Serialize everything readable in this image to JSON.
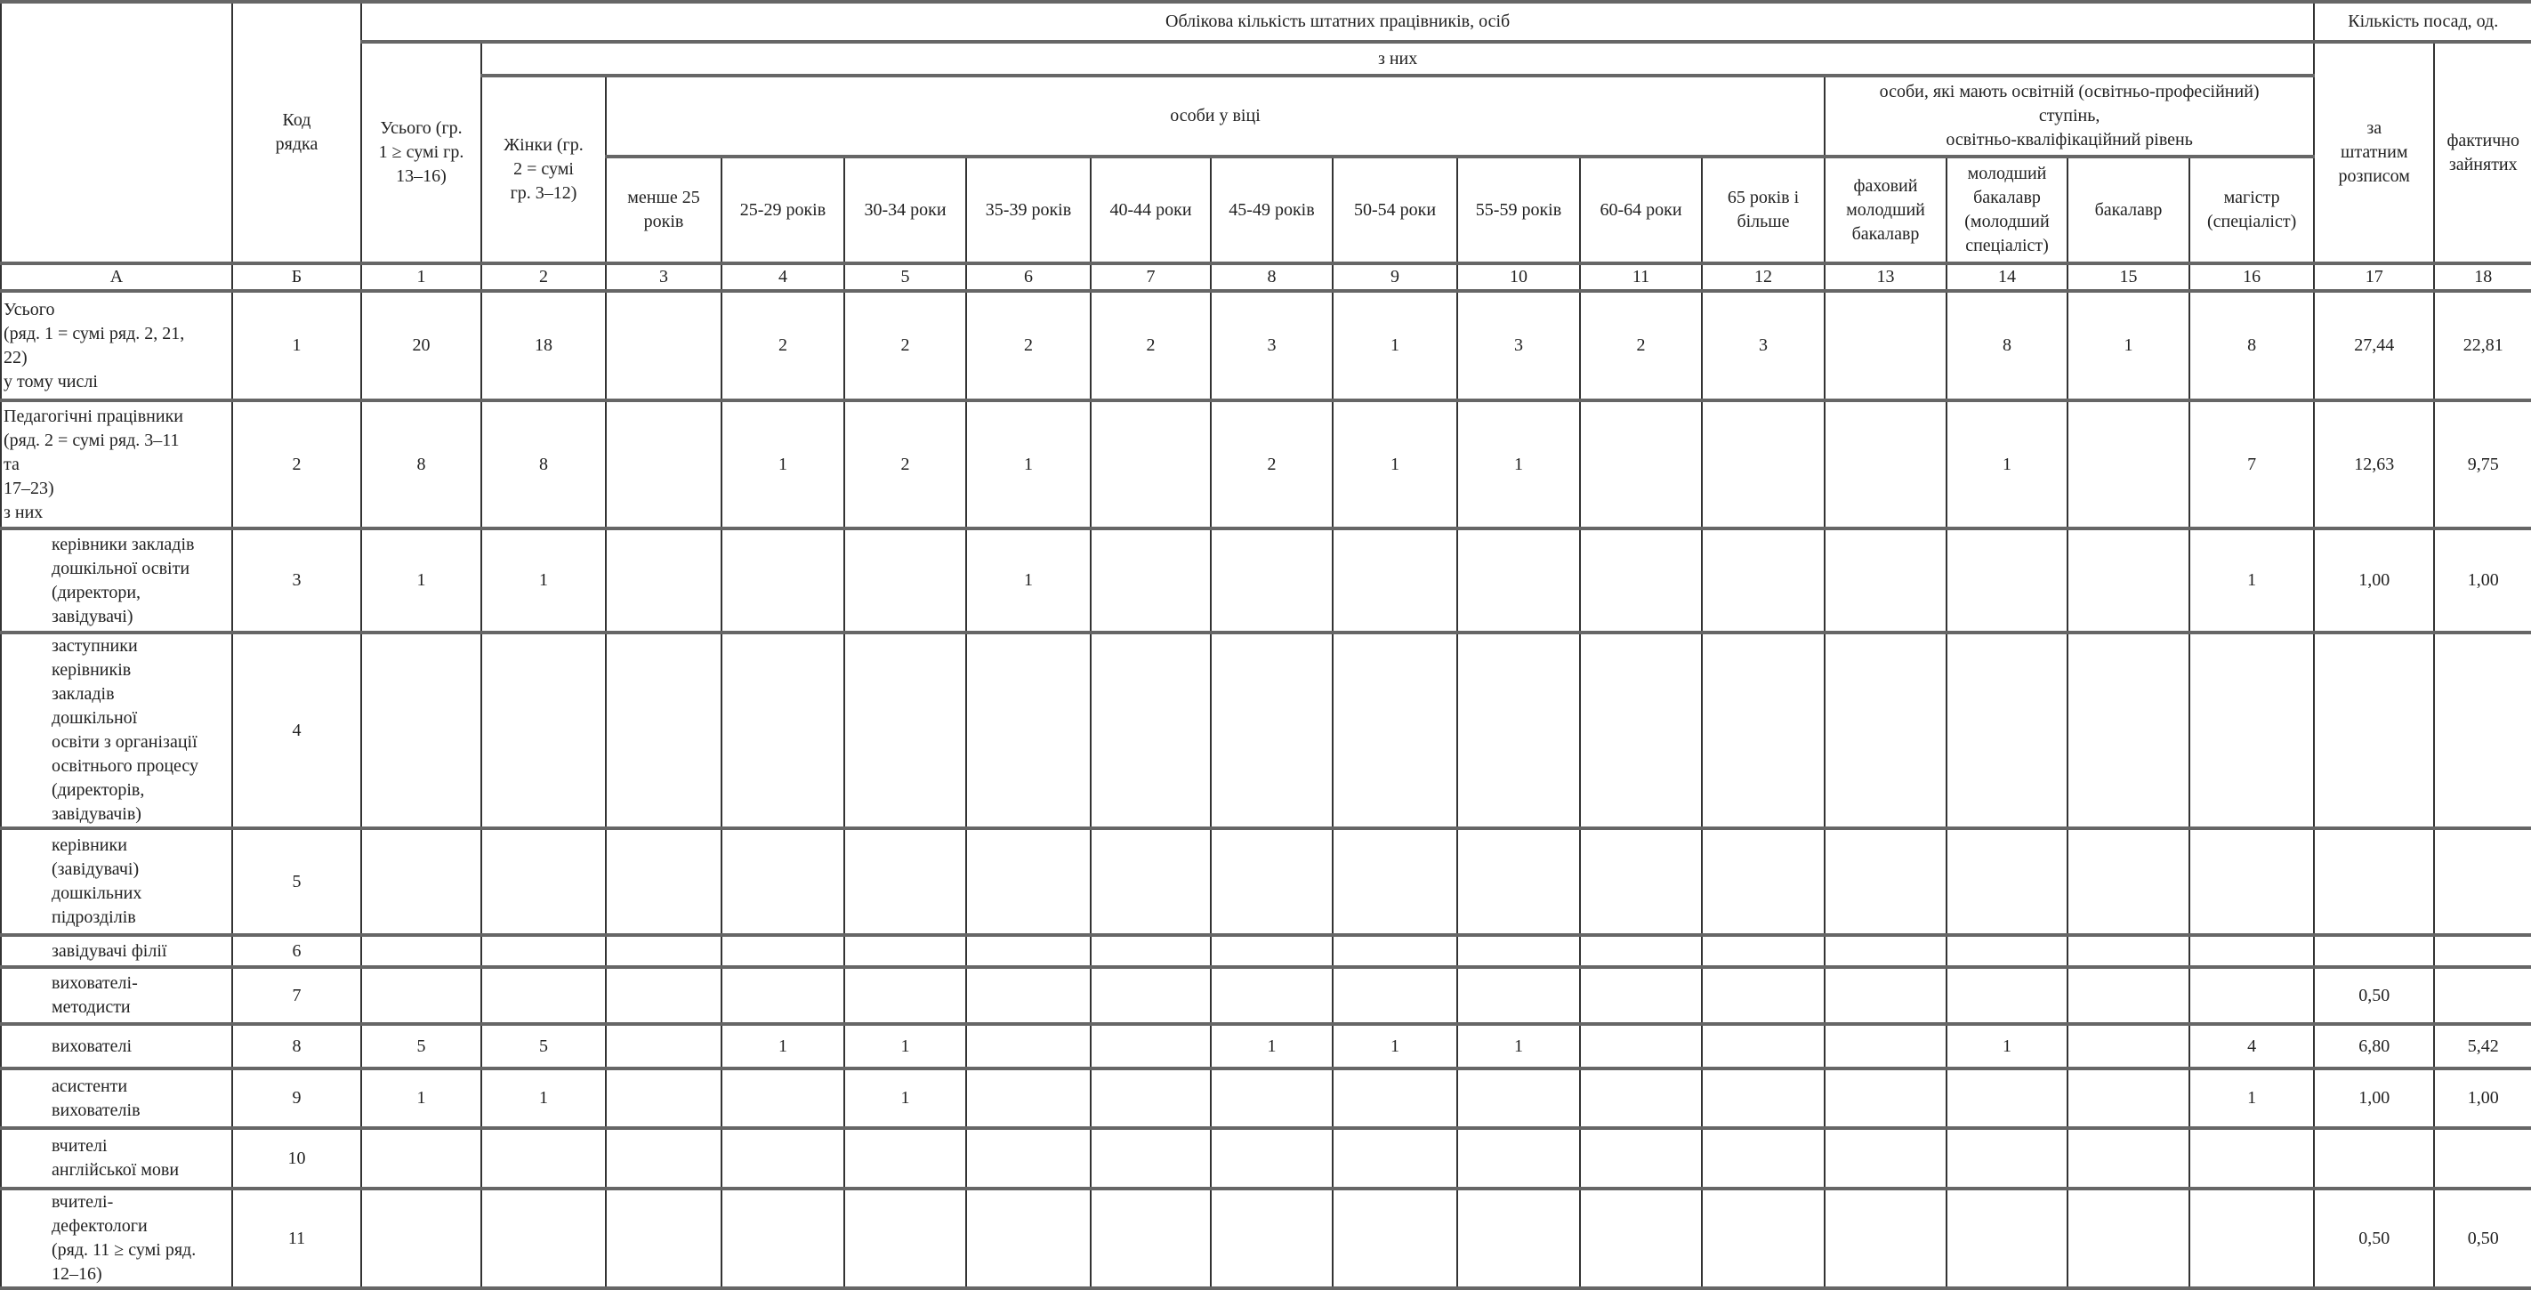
{
  "header": {
    "col_a": "",
    "code": "Код\nрядка",
    "staff_count": "Облікова кількість штатних працівників, осіб",
    "positions_count": "Кількість посад, од.",
    "total": "Усього (гр.\n1 ≥ сумі гр.\n13–16)",
    "of_them": "з них",
    "women": "Жінки (гр.\n2 = сумі\nгр. 3–12)",
    "by_age": "особи у віці",
    "by_education": "особи, які мають освітній (освітньо-професійний)\nступінь,\nосвітньо-кваліфікаційний рівень",
    "by_staff_schedule": "за\nштатним\nрозписом",
    "actually_occupied": "фактично\nзайнятих",
    "age_groups": [
      "менше 25\nроків",
      "25-29 років",
      "30-34 роки",
      "35-39 років",
      "40-44 роки",
      "45-49 років",
      "50-54 роки",
      "55-59 років",
      "60-64 роки",
      "65 років і\nбільше"
    ],
    "education_levels": [
      "фаховий\nмолодший\nбакалавр",
      "молодший\nбакалавр\n(молодший\nспеціаліст)",
      "бакалавр",
      "магістр\n(спеціаліст)"
    ],
    "column_numbers": [
      "А",
      "Б",
      "1",
      "2",
      "3",
      "4",
      "5",
      "6",
      "7",
      "8",
      "9",
      "10",
      "11",
      "12",
      "13",
      "14",
      "15",
      "16",
      "17",
      "18"
    ]
  },
  "rows": [
    {
      "label": "Усього\n(ряд. 1 = сумі ряд. 2, 21,\n22)\n   у тому числі",
      "code": "1",
      "values": [
        "20",
        "18",
        "",
        "2",
        "2",
        "2",
        "2",
        "3",
        "1",
        "3",
        "2",
        "3",
        "",
        "8",
        "1",
        "8",
        "27,44",
        "22,81"
      ]
    },
    {
      "label": "Педагогічні працівники\n(ряд. 2 = сумі ряд. 3–11\nта\n17–23)\n   з них",
      "code": "2",
      "values": [
        "8",
        "8",
        "",
        "1",
        "2",
        "1",
        "",
        "2",
        "1",
        "1",
        "",
        "",
        "",
        "1",
        "",
        "7",
        "12,63",
        "9,75"
      ]
    },
    {
      "label": "керівники закладів\nдошкільної освіти\n(директори,\nзавідувачі)",
      "code": "3",
      "values": [
        "1",
        "1",
        "",
        "",
        "",
        "1",
        "",
        "",
        "",
        "",
        "",
        "",
        "",
        "",
        "",
        "1",
        "1,00",
        "1,00"
      ]
    },
    {
      "label": "заступники\nкерівників\nзакладів\nдошкільної\nосвіти з організації\nосвітнього процесу\n(директорів,\nзавідувачів)",
      "code": "4",
      "values": [
        "",
        "",
        "",
        "",
        "",
        "",
        "",
        "",
        "",
        "",
        "",
        "",
        "",
        "",
        "",
        "",
        "",
        ""
      ]
    },
    {
      "label": "керівники\n(завідувачі)\nдошкільних\nпідрозділів",
      "code": "5",
      "values": [
        "",
        "",
        "",
        "",
        "",
        "",
        "",
        "",
        "",
        "",
        "",
        "",
        "",
        "",
        "",
        "",
        "",
        ""
      ]
    },
    {
      "label": "завідувачі філії",
      "code": "6",
      "values": [
        "",
        "",
        "",
        "",
        "",
        "",
        "",
        "",
        "",
        "",
        "",
        "",
        "",
        "",
        "",
        "",
        "",
        ""
      ]
    },
    {
      "label": "вихователі-\nметодисти",
      "code": "7",
      "values": [
        "",
        "",
        "",
        "",
        "",
        "",
        "",
        "",
        "",
        "",
        "",
        "",
        "",
        "",
        "",
        "",
        "0,50",
        ""
      ]
    },
    {
      "label": "вихователі",
      "code": "8",
      "values": [
        "5",
        "5",
        "",
        "1",
        "1",
        "",
        "",
        "1",
        "1",
        "1",
        "",
        "",
        "",
        "1",
        "",
        "4",
        "6,80",
        "5,42"
      ]
    },
    {
      "label": "асистенти\nвихователів",
      "code": "9",
      "values": [
        "1",
        "1",
        "",
        "",
        "1",
        "",
        "",
        "",
        "",
        "",
        "",
        "",
        "",
        "",
        "",
        "1",
        "1,00",
        "1,00"
      ]
    },
    {
      "label": "вчителі\nанглійської мови",
      "code": "10",
      "values": [
        "",
        "",
        "",
        "",
        "",
        "",
        "",
        "",
        "",
        "",
        "",
        "",
        "",
        "",
        "",
        "",
        "",
        ""
      ]
    },
    {
      "label": "вчителі-\nдефектологи\n(ряд. 11 ≥ сумі ряд.\n12–16)",
      "code": "11",
      "values": [
        "",
        "",
        "",
        "",
        "",
        "",
        "",
        "",
        "",
        "",
        "",
        "",
        "",
        "",
        "",
        "",
        "0,50",
        "0,50"
      ]
    }
  ]
}
